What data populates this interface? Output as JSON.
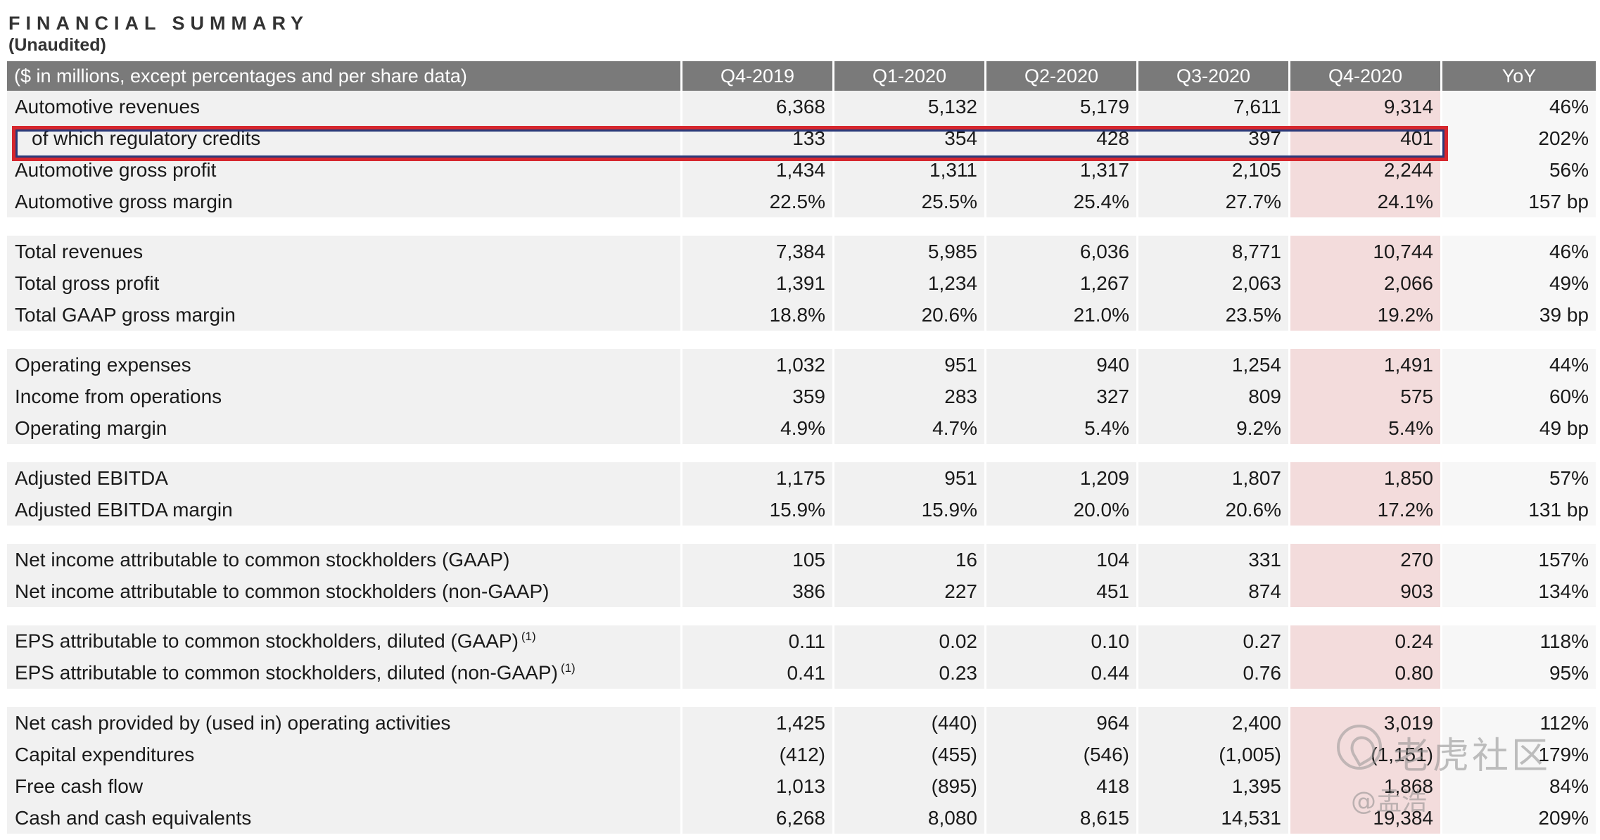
{
  "header": {
    "title": "FINANCIAL SUMMARY",
    "subtitle": "(Unaudited)"
  },
  "table": {
    "columns": [
      "($ in millions, except percentages and per share data)",
      "Q4-2019",
      "Q1-2020",
      "Q2-2020",
      "Q3-2020",
      "Q4-2020",
      "YoY"
    ],
    "groups": [
      [
        {
          "label": "Automotive revenues",
          "indent": false,
          "values": [
            "6,368",
            "5,132",
            "5,179",
            "7,611",
            "9,314"
          ],
          "yoy": "46%"
        },
        {
          "label": "of which regulatory credits",
          "indent": true,
          "values": [
            "133",
            "354",
            "428",
            "397",
            "401"
          ],
          "yoy": "202%"
        },
        {
          "label": "Automotive gross profit",
          "indent": false,
          "values": [
            "1,434",
            "1,311",
            "1,317",
            "2,105",
            "2,244"
          ],
          "yoy": "56%"
        },
        {
          "label": "Automotive gross margin",
          "indent": false,
          "values": [
            "22.5%",
            "25.5%",
            "25.4%",
            "27.7%",
            "24.1%"
          ],
          "yoy": "157 bp"
        }
      ],
      [
        {
          "label": "Total revenues",
          "indent": false,
          "values": [
            "7,384",
            "5,985",
            "6,036",
            "8,771",
            "10,744"
          ],
          "yoy": "46%"
        },
        {
          "label": "Total gross profit",
          "indent": false,
          "values": [
            "1,391",
            "1,234",
            "1,267",
            "2,063",
            "2,066"
          ],
          "yoy": "49%"
        },
        {
          "label": "Total GAAP gross margin",
          "indent": false,
          "values": [
            "18.8%",
            "20.6%",
            "21.0%",
            "23.5%",
            "19.2%"
          ],
          "yoy": "39 bp"
        }
      ],
      [
        {
          "label": "Operating expenses",
          "indent": false,
          "values": [
            "1,032",
            "951",
            "940",
            "1,254",
            "1,491"
          ],
          "yoy": "44%"
        },
        {
          "label": "Income from operations",
          "indent": false,
          "values": [
            "359",
            "283",
            "327",
            "809",
            "575"
          ],
          "yoy": "60%"
        },
        {
          "label": "Operating margin",
          "indent": false,
          "values": [
            "4.9%",
            "4.7%",
            "5.4%",
            "9.2%",
            "5.4%"
          ],
          "yoy": "49 bp"
        }
      ],
      [
        {
          "label": "Adjusted EBITDA",
          "indent": false,
          "values": [
            "1,175",
            "951",
            "1,209",
            "1,807",
            "1,850"
          ],
          "yoy": "57%"
        },
        {
          "label": "Adjusted EBITDA margin",
          "indent": false,
          "values": [
            "15.9%",
            "15.9%",
            "20.0%",
            "20.6%",
            "17.2%"
          ],
          "yoy": "131 bp"
        }
      ],
      [
        {
          "label": "Net income attributable to common stockholders (GAAP)",
          "indent": false,
          "values": [
            "105",
            "16",
            "104",
            "331",
            "270"
          ],
          "yoy": "157%"
        },
        {
          "label": "Net income attributable to common stockholders (non-GAAP)",
          "indent": false,
          "values": [
            "386",
            "227",
            "451",
            "874",
            "903"
          ],
          "yoy": "134%"
        }
      ],
      [
        {
          "label": "EPS attributable to common stockholders, diluted (GAAP)",
          "footnote": "(1)",
          "indent": false,
          "values": [
            "0.11",
            "0.02",
            "0.10",
            "0.27",
            "0.24"
          ],
          "yoy": "118%"
        },
        {
          "label": "EPS attributable to common stockholders, diluted (non-GAAP)",
          "footnote": "(1)",
          "indent": false,
          "values": [
            "0.41",
            "0.23",
            "0.44",
            "0.76",
            "0.80"
          ],
          "yoy": "95%"
        }
      ],
      [
        {
          "label": "Net cash provided by (used in) operating activities",
          "indent": false,
          "values": [
            "1,425",
            "(440)",
            "964",
            "2,400",
            "3,019"
          ],
          "yoy": "112%"
        },
        {
          "label": "Capital expenditures",
          "indent": false,
          "values": [
            "(412)",
            "(455)",
            "(546)",
            "(1,005)",
            "(1,151)"
          ],
          "yoy": "179%"
        },
        {
          "label": "Free cash flow",
          "indent": false,
          "values": [
            "1,013",
            "(895)",
            "418",
            "1,395",
            "1,868"
          ],
          "yoy": "84%"
        },
        {
          "label": "Cash and cash equivalents",
          "indent": false,
          "values": [
            "6,268",
            "8,080",
            "8,615",
            "14,531",
            "19,384"
          ],
          "yoy": "209%"
        }
      ]
    ]
  },
  "watermark": {
    "brand": "老虎社区",
    "user": "@孟浩"
  },
  "colors": {
    "header_bg": "#7a7a7a",
    "row_bg": "#f1f1f1",
    "highlight_col_bg": "#f3dcdc",
    "annotation_box": "#d6272e"
  }
}
